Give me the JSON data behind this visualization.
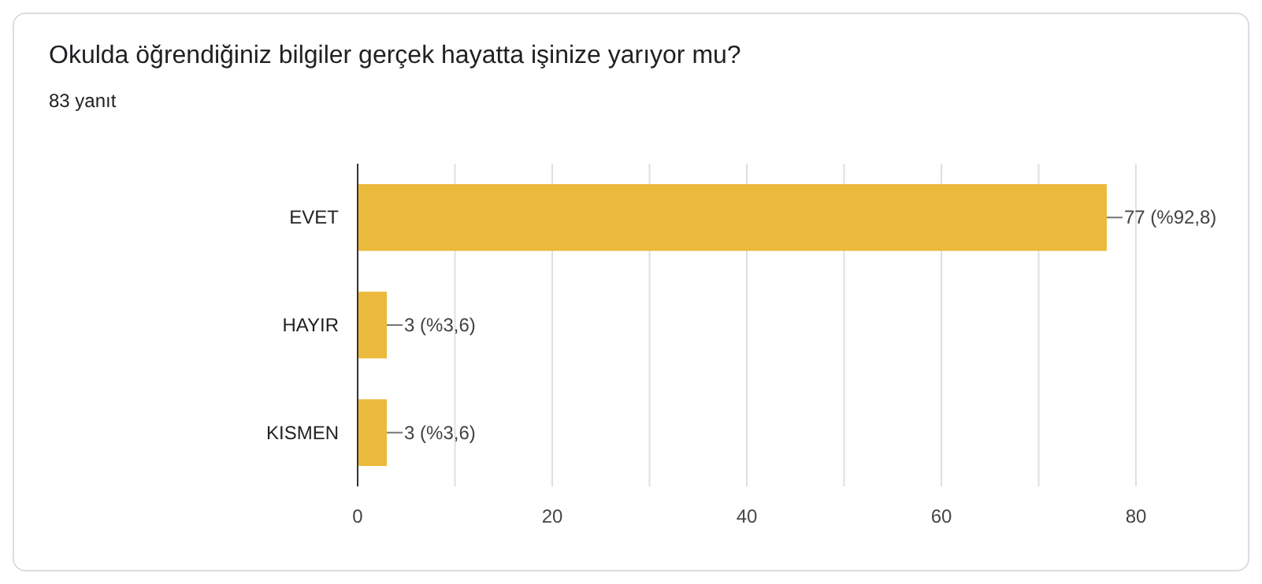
{
  "chart_data": {
    "type": "bar",
    "orientation": "horizontal",
    "title": "Okulda öğrendiğiniz bilgiler gerçek hayatta işinize yarıyor mu?",
    "subtitle": "83 yanıt",
    "categories": [
      "EVET",
      "HAYIR",
      "KISMEN"
    ],
    "values": [
      77,
      3,
      3
    ],
    "color": "#ebb93b",
    "value_labels": [
      "77 (%92,8)",
      "3 (%3,6)",
      "3 (%3,6)"
    ],
    "xlim": [
      0,
      80
    ],
    "xticks": [
      0,
      {
        "value": 10,
        "label": null
      },
      20,
      {
        "value": 30,
        "label": null
      },
      40,
      {
        "value": 50,
        "label": null
      },
      60,
      {
        "value": 70,
        "label": null
      },
      80
    ],
    "grid": "x"
  }
}
